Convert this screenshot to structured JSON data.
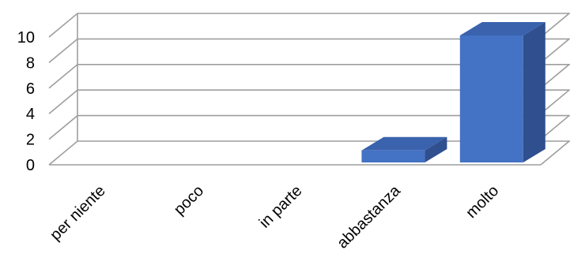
{
  "chart_data": {
    "type": "bar",
    "style": "3d-column",
    "categories": [
      "per niente",
      "poco",
      "in parte",
      "abbastanza",
      "molto"
    ],
    "series": [
      {
        "values": [
          0,
          0,
          0,
          1,
          10
        ]
      }
    ],
    "title": "",
    "xlabel": "",
    "ylabel": "",
    "ylim": [
      0,
      10
    ],
    "yticks": [
      0,
      2,
      4,
      6,
      8,
      10
    ],
    "grid": true,
    "legend": "none",
    "colors": {
      "bar_front": "#4472c4",
      "bar_top": "#3a62ad",
      "bar_side": "#2f4f8f",
      "grid": "#9e9e9e",
      "text": "#000000"
    }
  }
}
